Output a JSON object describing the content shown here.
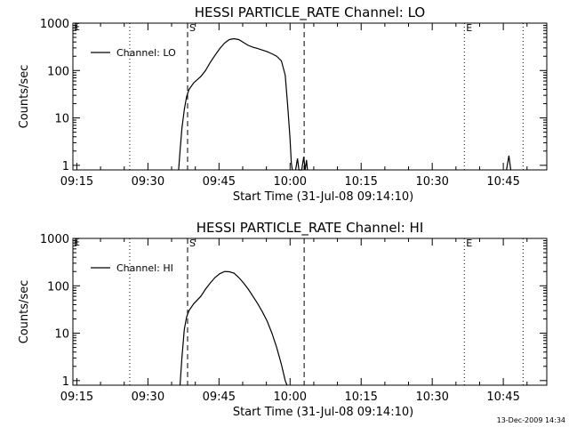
{
  "chart_data": [
    {
      "type": "line",
      "title": "HESSI PARTICLE_RATE Channel: LO",
      "xlabel": "Start Time (31-Jul-08 09:14:10)",
      "ylabel": "Counts/sec",
      "y_scale": "log",
      "x_unit": "minutes since 09:14:10",
      "xlim": [
        0,
        100
      ],
      "ylim": [
        0.8,
        1000
      ],
      "x_ticks": [
        {
          "value": 0.83,
          "label": "09:15"
        },
        {
          "value": 15.83,
          "label": "09:30"
        },
        {
          "value": 30.83,
          "label": "09:45"
        },
        {
          "value": 45.83,
          "label": "10:00"
        },
        {
          "value": 60.83,
          "label": "10:15"
        },
        {
          "value": 75.83,
          "label": "10:30"
        },
        {
          "value": 90.83,
          "label": "10:45"
        }
      ],
      "y_ticks": [
        {
          "value": 1,
          "label": "1"
        },
        {
          "value": 10,
          "label": "10"
        },
        {
          "value": 100,
          "label": "100"
        },
        {
          "value": 1000,
          "label": "1000"
        }
      ],
      "legend": {
        "entry": "Channel: LO",
        "position": "top-left"
      },
      "markers": [
        {
          "label": "S",
          "x": 24.2,
          "style": "dashed"
        },
        {
          "label": "",
          "x": 48.8,
          "style": "dashed"
        },
        {
          "label": "E",
          "x": 82.6,
          "style": "dotted"
        },
        {
          "label": "",
          "x": 12.0,
          "style": "dotted"
        },
        {
          "label": "",
          "x": 95.0,
          "style": "dotted"
        }
      ],
      "corner_marks": [
        "E",
        "E"
      ],
      "series": [
        {
          "name": "Channel: LO",
          "points": [
            [
              22.3,
              0.8
            ],
            [
              22.6,
              2
            ],
            [
              23.0,
              6
            ],
            [
              23.5,
              15
            ],
            [
              24.0,
              28
            ],
            [
              24.5,
              40
            ],
            [
              25.5,
              55
            ],
            [
              27.0,
              75
            ],
            [
              28.0,
              100
            ],
            [
              29.0,
              150
            ],
            [
              30.0,
              210
            ],
            [
              31.0,
              290
            ],
            [
              32.0,
              380
            ],
            [
              33.0,
              450
            ],
            [
              34.0,
              470
            ],
            [
              35.0,
              450
            ],
            [
              36.0,
              390
            ],
            [
              37.0,
              340
            ],
            [
              38.0,
              310
            ],
            [
              39.0,
              290
            ],
            [
              40.0,
              270
            ],
            [
              41.0,
              250
            ],
            [
              42.0,
              225
            ],
            [
              43.0,
              200
            ],
            [
              44.0,
              160
            ],
            [
              44.8,
              80
            ],
            [
              45.3,
              20
            ],
            [
              45.8,
              4
            ],
            [
              46.1,
              1.1
            ],
            [
              46.3,
              0.8
            ]
          ]
        },
        {
          "name": "",
          "points": [
            [
              47.0,
              0.8
            ],
            [
              47.4,
              1.4
            ],
            [
              47.7,
              0.8
            ],
            [
              48.3,
              0.8
            ],
            [
              48.7,
              1.5
            ],
            [
              49.0,
              0.8
            ],
            [
              49.3,
              1.3
            ],
            [
              49.5,
              0.8
            ]
          ]
        },
        {
          "name": "",
          "points": [
            [
              91.5,
              0.8
            ],
            [
              92.0,
              1.6
            ],
            [
              92.4,
              0.8
            ]
          ]
        }
      ]
    },
    {
      "type": "line",
      "title": "HESSI PARTICLE_RATE Channel: HI",
      "xlabel": "Start Time (31-Jul-08 09:14:10)",
      "ylabel": "Counts/sec",
      "y_scale": "log",
      "x_unit": "minutes since 09:14:10",
      "xlim": [
        0,
        100
      ],
      "ylim": [
        0.8,
        1000
      ],
      "x_ticks": [
        {
          "value": 0.83,
          "label": "09:15"
        },
        {
          "value": 15.83,
          "label": "09:30"
        },
        {
          "value": 30.83,
          "label": "09:45"
        },
        {
          "value": 45.83,
          "label": "10:00"
        },
        {
          "value": 60.83,
          "label": "10:15"
        },
        {
          "value": 75.83,
          "label": "10:30"
        },
        {
          "value": 90.83,
          "label": "10:45"
        }
      ],
      "y_ticks": [
        {
          "value": 1,
          "label": "1"
        },
        {
          "value": 10,
          "label": "10"
        },
        {
          "value": 100,
          "label": "100"
        },
        {
          "value": 1000,
          "label": "1000"
        }
      ],
      "legend": {
        "entry": "Channel: HI",
        "position": "top-left"
      },
      "markers": [
        {
          "label": "S",
          "x": 24.2,
          "style": "dashed"
        },
        {
          "label": "",
          "x": 48.8,
          "style": "dashed"
        },
        {
          "label": "E",
          "x": 82.6,
          "style": "dotted"
        },
        {
          "label": "",
          "x": 12.0,
          "style": "dotted"
        },
        {
          "label": "",
          "x": 95.0,
          "style": "dotted"
        }
      ],
      "corner_marks": [
        "E",
        "E"
      ],
      "series": [
        {
          "name": "Channel: HI",
          "points": [
            [
              22.6,
              0.8
            ],
            [
              23.0,
              3
            ],
            [
              23.5,
              12
            ],
            [
              24.0,
              22
            ],
            [
              24.5,
              30
            ],
            [
              25.5,
              42
            ],
            [
              27.0,
              60
            ],
            [
              28.0,
              85
            ],
            [
              29.0,
              115
            ],
            [
              30.0,
              150
            ],
            [
              31.0,
              180
            ],
            [
              32.0,
              200
            ],
            [
              33.0,
              198
            ],
            [
              34.0,
              185
            ],
            [
              35.0,
              150
            ],
            [
              36.0,
              115
            ],
            [
              37.0,
              85
            ],
            [
              38.0,
              60
            ],
            [
              39.0,
              42
            ],
            [
              40.0,
              28
            ],
            [
              41.0,
              18
            ],
            [
              42.0,
              10
            ],
            [
              43.0,
              5
            ],
            [
              44.0,
              2.2
            ],
            [
              44.8,
              1.0
            ],
            [
              45.2,
              0.8
            ]
          ]
        }
      ]
    }
  ],
  "footer": {
    "timestamp": "13-Dec-2009 14:34"
  },
  "colors": {
    "line": "#000000",
    "background": "#ffffff"
  }
}
